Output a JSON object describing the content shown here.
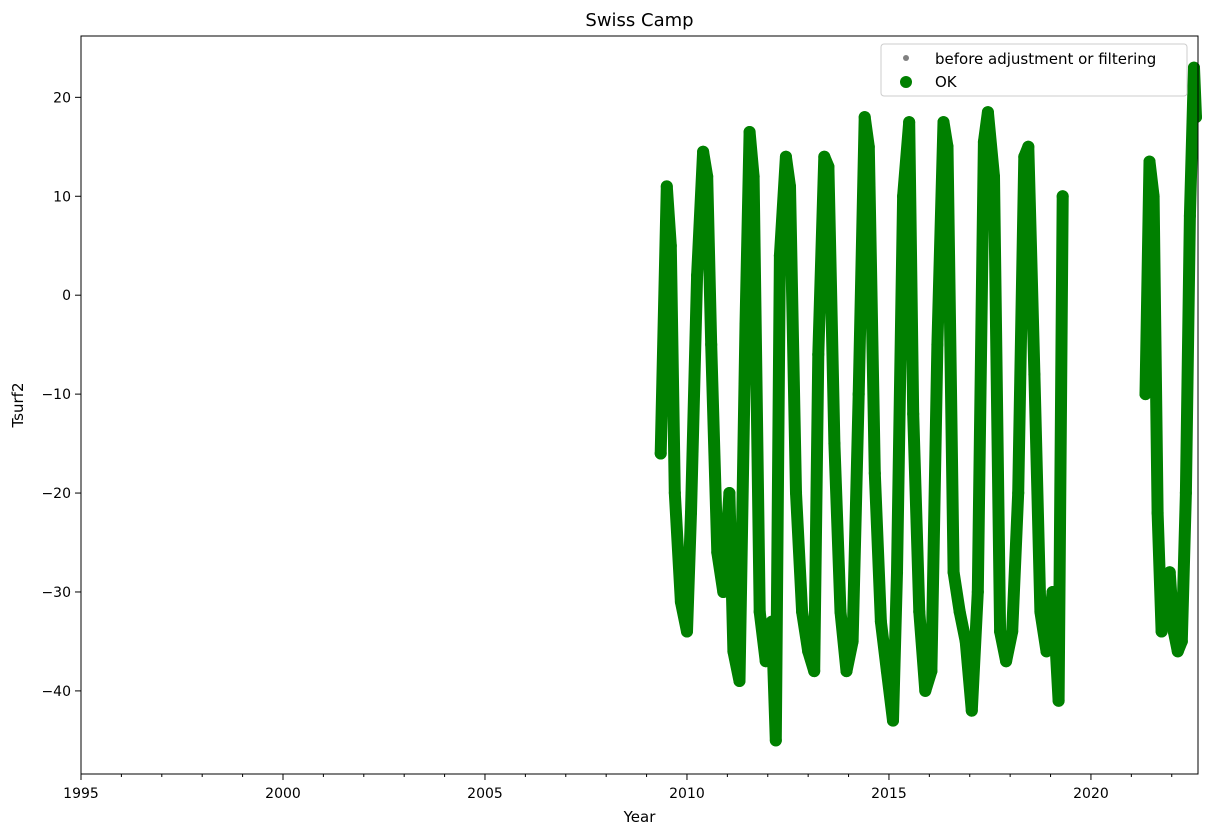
{
  "chart_data": {
    "type": "scatter",
    "title": "Swiss Camp",
    "xlabel": "Year",
    "ylabel": "Tsurf2",
    "xlim": [
      1995,
      2022.65
    ],
    "ylim": [
      -48.4,
      26.2
    ],
    "x_ticks": [
      1995,
      2000,
      2005,
      2010,
      2015,
      2020
    ],
    "y_ticks": [
      -40,
      -30,
      -20,
      -10,
      0,
      10,
      20
    ],
    "y_tick_labels": [
      "−40",
      "−30",
      "−20",
      "−10",
      "0",
      "10",
      "20"
    ],
    "grid": false,
    "legend_position": "top-right",
    "series": [
      {
        "name": "before adjustment or filtering",
        "color": "#808080",
        "marker": "small-dot",
        "points": []
      },
      {
        "name": "OK",
        "color": "#008000",
        "marker": "large-dot",
        "segments": [
          {
            "x": [
              2009.35,
              2009.5,
              2009.6,
              2009.7,
              2009.85,
              2010.0,
              2010.1,
              2010.25,
              2010.4,
              2010.5,
              2010.6,
              2010.75,
              2010.9,
              2011.05,
              2011.15,
              2011.3,
              2011.45,
              2011.55,
              2011.65,
              2011.8,
              2011.95,
              2012.1,
              2012.2,
              2012.3,
              2012.45,
              2012.55,
              2012.7,
              2012.85,
              2013.0,
              2013.15,
              2013.25,
              2013.4,
              2013.5,
              2013.65,
              2013.8,
              2013.95,
              2014.1,
              2014.25,
              2014.4,
              2014.5,
              2014.65,
              2014.8,
              2014.95,
              2015.1,
              2015.2,
              2015.35,
              2015.5,
              2015.6,
              2015.75,
              2015.9,
              2016.05,
              2016.2,
              2016.35,
              2016.45,
              2016.6,
              2016.75,
              2016.9,
              2017.05,
              2017.2,
              2017.35,
              2017.45,
              2017.6,
              2017.75,
              2017.9,
              2018.05,
              2018.2,
              2018.35,
              2018.45,
              2018.6,
              2018.75,
              2018.9,
              2019.05,
              2019.2,
              2019.3
            ],
            "y": [
              -16,
              11,
              5,
              -20,
              -31,
              -34,
              -22,
              2,
              14.5,
              12,
              -5,
              -26,
              -30,
              -20,
              -36,
              -39,
              -3,
              16.5,
              12,
              -32,
              -37,
              -33,
              -45,
              4,
              14,
              11,
              -20,
              -32,
              -36,
              -38,
              -6,
              14,
              13,
              -15,
              -32,
              -38,
              -35,
              -10,
              18,
              15,
              -18,
              -33,
              -38,
              -43,
              -28,
              10,
              17.5,
              -12,
              -32,
              -40,
              -38,
              -5,
              17.5,
              15,
              -28,
              -32,
              -35,
              -42,
              -30,
              15.5,
              18.5,
              12,
              -34,
              -37,
              -34,
              -20,
              14,
              15,
              -8,
              -32,
              -36,
              -30,
              -41,
              10
            ]
          },
          {
            "x": [
              2021.35,
              2021.45,
              2021.55,
              2021.65,
              2021.75,
              2021.85,
              2021.95,
              2022.05,
              2022.15,
              2022.25,
              2022.35,
              2022.45,
              2022.55,
              2022.6
            ],
            "y": [
              -10,
              13.5,
              10,
              -22,
              -34,
              -30,
              -28,
              -34,
              -36,
              -35,
              -20,
              8,
              23,
              18
            ]
          }
        ]
      }
    ]
  }
}
